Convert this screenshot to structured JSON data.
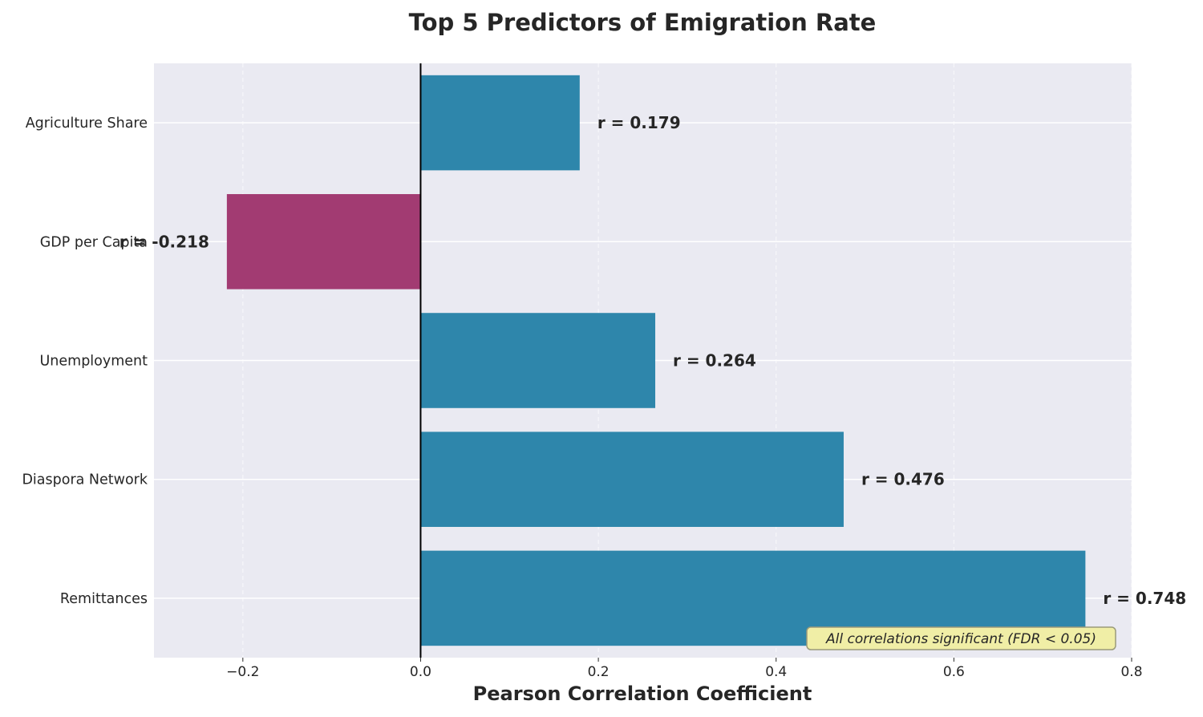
{
  "chart_data": {
    "type": "bar",
    "orientation": "horizontal",
    "title": "Top 5 Predictors of Emigration Rate",
    "xlabel": "Pearson Correlation Coefficient",
    "ylabel": "",
    "categories": [
      "Agriculture Share",
      "GDP per Capita",
      "Unemployment",
      "Diaspora Network",
      "Remittances"
    ],
    "values": [
      0.179,
      -0.218,
      0.264,
      0.476,
      0.748
    ],
    "value_labels": [
      "r = 0.179",
      "r = -0.218",
      "r = 0.264",
      "r = 0.476",
      "r = 0.748"
    ],
    "xlim": [
      -0.3,
      0.8
    ],
    "xticks": [
      -0.2,
      0.0,
      0.2,
      0.4,
      0.6,
      0.8
    ],
    "xtick_labels": [
      "−0.2",
      "0.0",
      "0.2",
      "0.4",
      "0.6",
      "0.8"
    ],
    "positive_color": "#2e86ab",
    "negative_color": "#a23b72",
    "plot_background": "#eaeaf2",
    "grid": true,
    "zero_line": true,
    "annotation": "All correlations significant (FDR < 0.05)",
    "annotation_placement": "bottom-right",
    "annotation_background": "#f0eea6"
  }
}
